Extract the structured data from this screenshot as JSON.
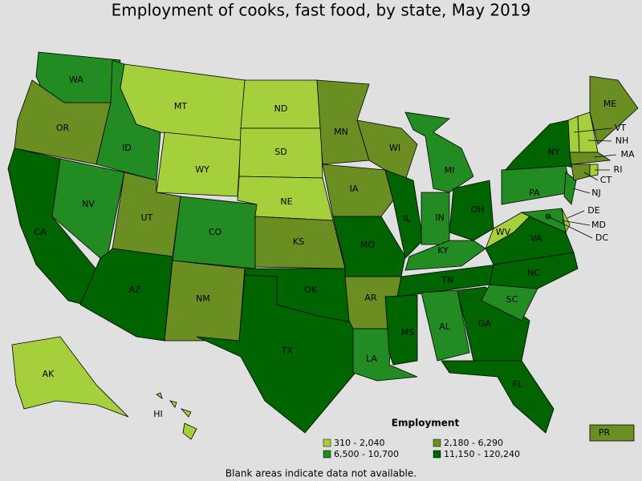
{
  "title": "Employment of cooks, fast food, by state, May 2019",
  "states": [
    {
      "abbr": "WA",
      "color": "#228b22"
    },
    {
      "abbr": "OR",
      "color": "#6b8e23"
    },
    {
      "abbr": "CA",
      "color": "#006400"
    },
    {
      "abbr": "NV",
      "color": "#228b22"
    },
    {
      "abbr": "ID",
      "color": "#228b22"
    },
    {
      "abbr": "MT",
      "color": "#a6cf3c"
    },
    {
      "abbr": "WY",
      "color": "#a6cf3c"
    },
    {
      "abbr": "UT",
      "color": "#6b8e23"
    },
    {
      "abbr": "CO",
      "color": "#228b22"
    },
    {
      "abbr": "AZ",
      "color": "#006400"
    },
    {
      "abbr": "NM",
      "color": "#6b8e23"
    },
    {
      "abbr": "ND",
      "color": "#a6cf3c"
    },
    {
      "abbr": "SD",
      "color": "#a6cf3c"
    },
    {
      "abbr": "NE",
      "color": "#a6cf3c"
    },
    {
      "abbr": "KS",
      "color": "#6b8e23"
    },
    {
      "abbr": "TX",
      "color": "#006400"
    },
    {
      "abbr": "OK",
      "color": "#006400"
    },
    {
      "abbr": "MN",
      "color": "#6b8e23"
    },
    {
      "abbr": "IA",
      "color": "#6b8e23"
    },
    {
      "abbr": "MO",
      "color": "#006400"
    },
    {
      "abbr": "AR",
      "color": "#6b8e23"
    },
    {
      "abbr": "LA",
      "color": "#228b22"
    },
    {
      "abbr": "WI",
      "color": "#6b8e23"
    },
    {
      "abbr": "IL",
      "color": "#006400"
    },
    {
      "abbr": "MI",
      "color": "#228b22"
    },
    {
      "abbr": "IN",
      "color": "#228b22"
    },
    {
      "abbr": "OH",
      "color": "#006400"
    },
    {
      "abbr": "KY",
      "color": "#228b22"
    },
    {
      "abbr": "TN",
      "color": "#006400"
    },
    {
      "abbr": "MS",
      "color": "#006400"
    },
    {
      "abbr": "AL",
      "color": "#228b22"
    },
    {
      "abbr": "GA",
      "color": "#006400"
    },
    {
      "abbr": "FL",
      "color": "#006400"
    },
    {
      "abbr": "SC",
      "color": "#228b22"
    },
    {
      "abbr": "NC",
      "color": "#006400"
    },
    {
      "abbr": "WV",
      "color": "#a6cf3c"
    },
    {
      "abbr": "VA",
      "color": "#006400"
    },
    {
      "abbr": "PA",
      "color": "#228b22"
    },
    {
      "abbr": "NY",
      "color": "#006400"
    },
    {
      "abbr": "NJ",
      "color": "#228b22"
    },
    {
      "abbr": "MD",
      "color": "#228b22"
    },
    {
      "abbr": "DE",
      "color": "#a6cf3c"
    },
    {
      "abbr": "VT",
      "color": "#a6cf3c"
    },
    {
      "abbr": "NH",
      "color": "#a6cf3c"
    },
    {
      "abbr": "ME",
      "color": "#6b8e23"
    },
    {
      "abbr": "MA",
      "color": "#6b8e23"
    },
    {
      "abbr": "CT",
      "color": "#6b8e23"
    },
    {
      "abbr": "RI",
      "color": "#a6cf3c"
    },
    {
      "abbr": "DC",
      "color": "#006400"
    },
    {
      "abbr": "AK",
      "color": "#a6cf3c"
    },
    {
      "abbr": "HI",
      "color": "#a6cf3c"
    },
    {
      "abbr": "PR",
      "color": "#6b8e23"
    }
  ],
  "legend": {
    "title": "Employment",
    "items": [
      {
        "label": "310 - 2,040",
        "color": "#a6cf3c"
      },
      {
        "label": "2,180 - 6,290",
        "color": "#6b8e23"
      },
      {
        "label": "6,500 - 10,700",
        "color": "#228b22"
      },
      {
        "label": "11,150 - 120,240",
        "color": "#006400"
      }
    ]
  },
  "note": "Blank areas indicate data not available."
}
